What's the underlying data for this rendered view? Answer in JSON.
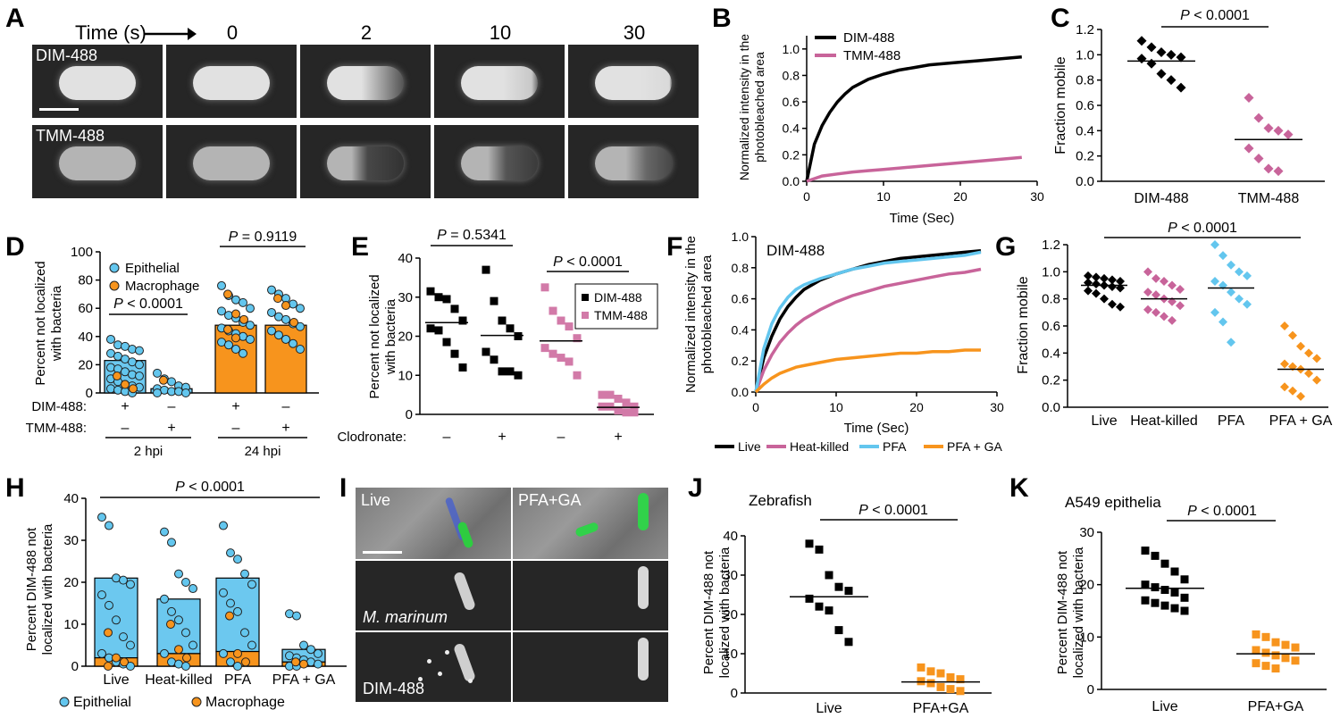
{
  "panels": {
    "A": {
      "label": "A",
      "time_axis_label": "Time (s)",
      "timepoints": [
        "0",
        "2",
        "10",
        "30"
      ],
      "rows": [
        {
          "name": "DIM-488",
          "bleach_depth": [
            0,
            0.45,
            0.15,
            0.05
          ]
        },
        {
          "name": "TMM-488",
          "bleach_depth": [
            0,
            0.85,
            0.75,
            0.6
          ]
        }
      ]
    },
    "B": {
      "label": "B"
    },
    "C": {
      "label": "C"
    },
    "D": {
      "label": "D"
    },
    "E": {
      "label": "E"
    },
    "F": {
      "label": "F"
    },
    "G": {
      "label": "G"
    },
    "H": {
      "label": "H"
    },
    "I": {
      "label": "I",
      "columns": [
        "Live",
        "PFA+GA"
      ],
      "row_labels": [
        "",
        "M. marinum",
        "DIM-488"
      ]
    },
    "J": {
      "label": "J"
    },
    "K": {
      "label": "K"
    }
  },
  "colors": {
    "black": "#000000",
    "pink": "#c8649a",
    "skyblue": "#63c6ee",
    "orange": "#f7941d",
    "bar_blue": "#6cc8ef",
    "bar_orange": "#f7941d",
    "light_pink_marker": "#d27aa8"
  },
  "chart_data": [
    {
      "id": "B",
      "type": "line",
      "title": "",
      "xlabel": "Time (Sec)",
      "ylabel": "Normalized intensity in the photobleached area",
      "xlim": [
        0,
        30
      ],
      "ylim": [
        0,
        1.1
      ],
      "xticks": [
        0,
        10,
        20,
        30
      ],
      "yticks": [
        0,
        0.2,
        0.4,
        0.6,
        0.8,
        1.0
      ],
      "legend": "top-left",
      "series": [
        {
          "name": "DIM-488",
          "color": "#000000",
          "x": [
            0,
            1,
            2,
            3,
            4,
            5,
            6,
            8,
            10,
            12,
            14,
            16,
            18,
            20,
            22,
            24,
            26,
            28
          ],
          "y": [
            0,
            0.28,
            0.42,
            0.52,
            0.6,
            0.66,
            0.71,
            0.77,
            0.81,
            0.84,
            0.86,
            0.88,
            0.89,
            0.9,
            0.91,
            0.92,
            0.93,
            0.94
          ]
        },
        {
          "name": "TMM-488",
          "color": "#c8649a",
          "x": [
            0,
            2,
            4,
            6,
            8,
            10,
            12,
            14,
            16,
            18,
            20,
            22,
            24,
            26,
            28
          ],
          "y": [
            0,
            0.04,
            0.055,
            0.07,
            0.08,
            0.09,
            0.1,
            0.11,
            0.12,
            0.13,
            0.14,
            0.15,
            0.16,
            0.17,
            0.18
          ]
        }
      ]
    },
    {
      "id": "C",
      "type": "scatter",
      "title": "",
      "xlabel": "",
      "ylabel": "Fraction mobile",
      "ylim": [
        0,
        1.2
      ],
      "yticks": [
        0,
        0.2,
        0.4,
        0.6,
        0.8,
        1.0,
        1.2
      ],
      "categories": [
        "DIM-488",
        "TMM-488"
      ],
      "annotation": "P < 0.0001",
      "series": [
        {
          "category": "DIM-488",
          "color": "#000000",
          "marker": "diamond",
          "mean": 0.95,
          "values": [
            1.11,
            1.06,
            1.02,
            1.0,
            0.98,
            0.97,
            0.93,
            0.85,
            0.8,
            0.74
          ]
        },
        {
          "category": "TMM-488",
          "color": "#c8649a",
          "marker": "diamond",
          "mean": 0.33,
          "values": [
            0.66,
            0.5,
            0.42,
            0.4,
            0.37,
            0.26,
            0.18,
            0.1,
            0.08
          ]
        }
      ]
    },
    {
      "id": "D",
      "type": "bar",
      "title": "",
      "ylabel": "Percent not localized with bacteria",
      "ylim": [
        0,
        100
      ],
      "yticks": [
        0,
        20,
        40,
        60,
        80,
        100
      ],
      "legend_entries": [
        {
          "name": "Epithelial",
          "color": "#63c6ee"
        },
        {
          "name": "Macrophage",
          "color": "#f7941d"
        }
      ],
      "row_labels": [
        "DIM-488:",
        "TMM-488:"
      ],
      "group_labels": [
        "2 hpi",
        "24 hpi"
      ],
      "categories": [
        {
          "dim": "+",
          "tmm": "–",
          "bar": 23,
          "color": "#6cc8ef",
          "epithelial": [
            38,
            34,
            33,
            31,
            30,
            28,
            26,
            24,
            22,
            20,
            18,
            17,
            15,
            13,
            12,
            10,
            8,
            6,
            5,
            4,
            3,
            2,
            1,
            0
          ],
          "macrophage": [
            12,
            6,
            3
          ]
        },
        {
          "dim": "–",
          "tmm": "+",
          "bar": 3,
          "color": "#6cc8ef",
          "epithelial": [
            14,
            10,
            8,
            5,
            4,
            3,
            2,
            1,
            1,
            0,
            0
          ],
          "macrophage": [
            9
          ]
        },
        {
          "dim": "+",
          "tmm": "–",
          "bar": 48,
          "color": "#f7941d",
          "epithelial": [
            76,
            69,
            66,
            64,
            60,
            58,
            55,
            53,
            50,
            48,
            46,
            44,
            42,
            40,
            38,
            36,
            34,
            31,
            28
          ],
          "macrophage": [
            70,
            56,
            52,
            45,
            39
          ]
        },
        {
          "dim": "–",
          "tmm": "+",
          "bar": 48,
          "color": "#f7941d",
          "epithelial": [
            73,
            70,
            67,
            63,
            60,
            57,
            54,
            52,
            49,
            47,
            44,
            41,
            38,
            35,
            31
          ],
          "macrophage": [
            67,
            62,
            50
          ]
        }
      ],
      "annotations": [
        {
          "text": "P < 0.0001",
          "between": [
            0,
            1
          ]
        },
        {
          "text": "P = 0.9119",
          "between": [
            2,
            3
          ]
        }
      ]
    },
    {
      "id": "E",
      "type": "scatter",
      "title": "",
      "ylabel": "Percent not localized with bacteria",
      "ylim": [
        0,
        40
      ],
      "yticks": [
        0,
        10,
        20,
        30,
        40
      ],
      "row_label": "Clodronate:",
      "legend_entries": [
        {
          "name": "DIM-488",
          "color": "#000000"
        },
        {
          "name": "TMM-488",
          "color": "#d27aa8"
        }
      ],
      "categories": [
        {
          "clodronate": "–",
          "color": "#000000",
          "mean": 23.5,
          "values": [
            31.5,
            30,
            29.5,
            27,
            24,
            22,
            21.5,
            18.5,
            15.5,
            12
          ]
        },
        {
          "clodronate": "+",
          "color": "#000000",
          "mean": 20.2,
          "values": [
            37,
            29,
            24,
            22,
            20,
            16,
            14,
            11,
            11,
            10
          ]
        },
        {
          "clodronate": "–",
          "color": "#d27aa8",
          "mean": 18.8,
          "values": [
            32.5,
            26.5,
            24,
            22.5,
            19.5,
            17,
            15.5,
            14.5,
            13.5,
            10
          ]
        },
        {
          "clodronate": "+",
          "color": "#d27aa8",
          "mean": 1.8,
          "values": [
            5,
            5,
            4,
            3,
            2,
            2,
            2,
            1,
            0.5,
            0.5
          ]
        }
      ],
      "annotations": [
        {
          "text": "P = 0.5341",
          "between": [
            0,
            1
          ]
        },
        {
          "text": "P < 0.0001",
          "between": [
            2,
            3
          ]
        }
      ]
    },
    {
      "id": "F",
      "type": "line",
      "title": "DIM-488",
      "xlabel": "Time (Sec)",
      "ylabel": "Normalized intensity in the photobleached area",
      "xlim": [
        0,
        30
      ],
      "ylim": [
        0,
        1.0
      ],
      "xticks": [
        0,
        10,
        20,
        30
      ],
      "yticks": [
        0,
        0.2,
        0.4,
        0.6,
        0.8,
        1.0
      ],
      "legend": "bottom",
      "series": [
        {
          "name": "Live",
          "color": "#000000",
          "x": [
            0,
            1,
            2,
            3,
            4,
            5,
            6,
            8,
            10,
            12,
            14,
            16,
            18,
            20,
            22,
            24,
            26,
            28
          ],
          "y": [
            0,
            0.22,
            0.36,
            0.47,
            0.55,
            0.61,
            0.66,
            0.72,
            0.76,
            0.79,
            0.82,
            0.84,
            0.86,
            0.87,
            0.88,
            0.89,
            0.9,
            0.91
          ]
        },
        {
          "name": "Heat-killed",
          "color": "#c8649a",
          "x": [
            0,
            1,
            2,
            3,
            4,
            5,
            6,
            8,
            10,
            12,
            14,
            16,
            18,
            20,
            22,
            24,
            26,
            28
          ],
          "y": [
            0,
            0.14,
            0.24,
            0.32,
            0.38,
            0.43,
            0.47,
            0.53,
            0.58,
            0.62,
            0.65,
            0.68,
            0.7,
            0.72,
            0.74,
            0.76,
            0.77,
            0.79
          ]
        },
        {
          "name": "PFA",
          "color": "#63c6ee",
          "x": [
            0,
            1,
            2,
            3,
            4,
            5,
            6,
            8,
            10,
            12,
            14,
            16,
            18,
            20,
            22,
            24,
            26,
            28
          ],
          "y": [
            0,
            0.28,
            0.44,
            0.54,
            0.61,
            0.66,
            0.69,
            0.73,
            0.76,
            0.79,
            0.81,
            0.83,
            0.84,
            0.85,
            0.86,
            0.87,
            0.88,
            0.9
          ]
        },
        {
          "name": "PFA + GA",
          "color": "#f7941d",
          "x": [
            0,
            1,
            2,
            3,
            4,
            5,
            6,
            8,
            10,
            12,
            14,
            16,
            18,
            20,
            22,
            24,
            26,
            28
          ],
          "y": [
            0,
            0.05,
            0.09,
            0.12,
            0.14,
            0.16,
            0.17,
            0.19,
            0.21,
            0.22,
            0.23,
            0.24,
            0.25,
            0.25,
            0.26,
            0.26,
            0.27,
            0.27
          ]
        }
      ]
    },
    {
      "id": "G",
      "type": "scatter",
      "title": "",
      "ylabel": "Fraction mobile",
      "ylim": [
        0,
        1.2
      ],
      "yticks": [
        0,
        0.2,
        0.4,
        0.6,
        0.8,
        1.0,
        1.2
      ],
      "categories": [
        "Live",
        "Heat-killed",
        "PFA",
        "PFA + GA"
      ],
      "annotation": "P < 0.0001",
      "series": [
        {
          "category": "Live",
          "color": "#000000",
          "mean": 0.9,
          "values": [
            0.97,
            0.96,
            0.95,
            0.94,
            0.93,
            0.92,
            0.91,
            0.9,
            0.89,
            0.88,
            0.86,
            0.84,
            0.8,
            0.76,
            0.74
          ]
        },
        {
          "category": "Heat-killed",
          "color": "#c8649a",
          "mean": 0.8,
          "values": [
            1.0,
            0.95,
            0.93,
            0.9,
            0.87,
            0.85,
            0.83,
            0.8,
            0.78,
            0.75,
            0.72,
            0.7,
            0.67,
            0.64
          ]
        },
        {
          "category": "PFA",
          "color": "#63c6ee",
          "mean": 0.88,
          "values": [
            1.2,
            1.12,
            1.05,
            1.0,
            0.97,
            0.93,
            0.9,
            0.85,
            0.8,
            0.76,
            0.7,
            0.63,
            0.48
          ]
        },
        {
          "category": "PFA + GA",
          "color": "#f7941d",
          "mean": 0.28,
          "values": [
            0.6,
            0.53,
            0.45,
            0.4,
            0.36,
            0.32,
            0.3,
            0.28,
            0.25,
            0.2,
            0.15,
            0.12,
            0.08
          ]
        }
      ]
    },
    {
      "id": "H",
      "type": "bar",
      "title": "",
      "ylabel": "Percent DIM-488 not localized with bacteria",
      "ylim": [
        0,
        40
      ],
      "yticks": [
        0,
        10,
        20,
        30,
        40
      ],
      "categories": [
        "Live",
        "Heat-killed",
        "PFA",
        "PFA + GA"
      ],
      "annotation": "P < 0.0001",
      "legend_entries": [
        {
          "name": "Epithelial",
          "color": "#63c6ee"
        },
        {
          "name": "Macrophage",
          "color": "#f7941d"
        }
      ],
      "series": [
        {
          "name": "Epithelial",
          "color": "#6cc8ef",
          "values": [
            21,
            16,
            21,
            4
          ]
        },
        {
          "name": "Macrophage",
          "color": "#f7941d",
          "values": [
            2,
            3,
            3.5,
            1
          ]
        }
      ],
      "points": [
        {
          "epithelial": [
            35.5,
            33.5,
            21,
            20.5,
            19.5,
            17,
            14.5,
            11,
            7,
            5,
            3,
            2,
            1,
            0.5,
            0
          ],
          "macrophage": [
            8,
            2,
            1,
            0
          ]
        },
        {
          "epithelial": [
            32,
            29.5,
            22,
            20,
            18.5,
            16,
            13,
            11,
            8,
            5,
            3,
            1,
            0.5,
            0
          ],
          "macrophage": [
            10,
            4,
            2
          ]
        },
        {
          "epithelial": [
            33.5,
            27,
            25.5,
            22,
            19.5,
            17.5,
            15,
            13,
            8,
            5,
            3,
            1,
            0
          ],
          "macrophage": [
            12,
            3,
            1
          ]
        },
        {
          "epithelial": [
            12.5,
            12,
            5,
            4,
            3,
            2.5,
            2,
            1.5,
            1,
            0.5,
            0,
            0
          ],
          "macrophage": [
            1,
            0.5
          ]
        }
      ]
    },
    {
      "id": "J",
      "type": "scatter",
      "title": "Zebrafish",
      "ylabel": "Percent DIM-488 not localized with bacteria",
      "ylim": [
        0,
        40
      ],
      "yticks": [
        0,
        10,
        20,
        30,
        40
      ],
      "categories": [
        "Live",
        "PFA+GA"
      ],
      "annotation": "P < 0.0001",
      "series": [
        {
          "category": "Live",
          "color": "#000000",
          "mean": 24.5,
          "values": [
            38,
            36.5,
            30,
            27,
            26,
            24,
            22,
            21,
            16,
            13
          ]
        },
        {
          "category": "PFA+GA",
          "color": "#f7941d",
          "mean": 2.8,
          "values": [
            6.5,
            5.5,
            5,
            4,
            3.5,
            3,
            2.5,
            1.5,
            1,
            0.5
          ]
        }
      ]
    },
    {
      "id": "K",
      "type": "scatter",
      "title": "A549 epithelia",
      "ylabel": "Percent DIM-488 not localized with bacteria",
      "ylim": [
        0,
        30
      ],
      "yticks": [
        0,
        10,
        20,
        30
      ],
      "categories": [
        "Live",
        "PFA+GA"
      ],
      "annotation": "P < 0.0001",
      "series": [
        {
          "category": "Live",
          "color": "#000000",
          "mean": 19.3,
          "values": [
            26.5,
            25.5,
            24,
            22.5,
            21,
            20,
            19.5,
            19,
            18.5,
            17.5,
            17,
            16.5,
            16,
            15.5,
            15
          ]
        },
        {
          "category": "PFA+GA",
          "color": "#f7941d",
          "mean": 6.8,
          "values": [
            10.5,
            10,
            9,
            8.5,
            8,
            7.5,
            7,
            6.5,
            6,
            5.5,
            5,
            4.5,
            4
          ]
        }
      ]
    }
  ]
}
